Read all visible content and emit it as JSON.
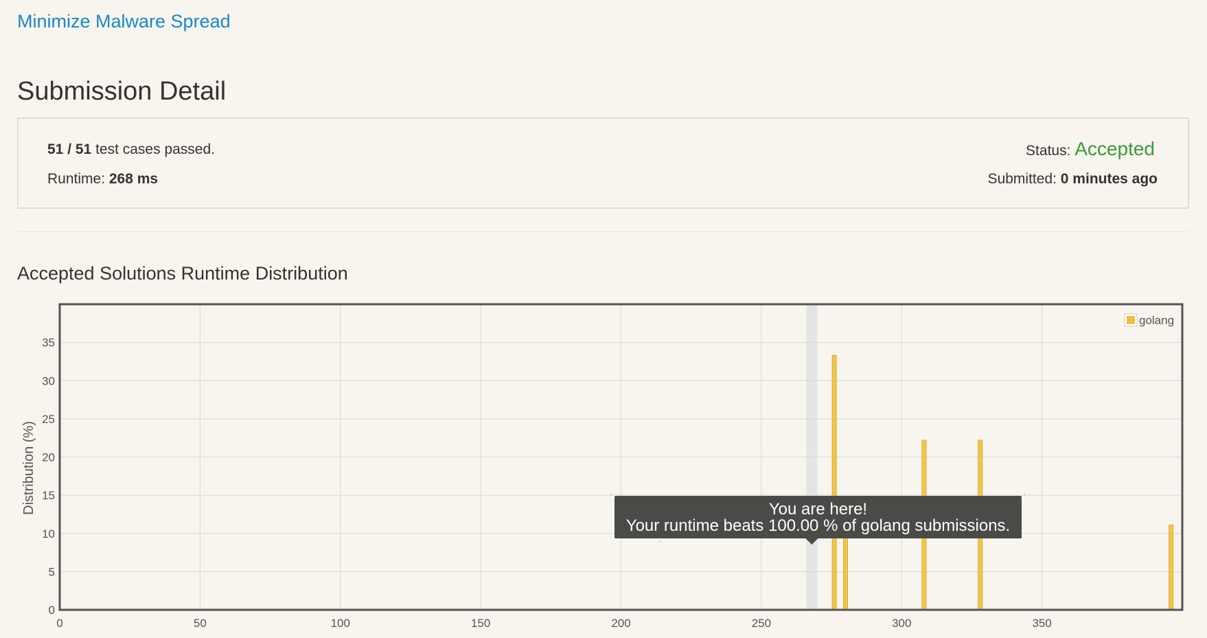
{
  "problem": {
    "title": "Minimize Malware Spread"
  },
  "page": {
    "heading": "Submission Detail"
  },
  "detail": {
    "passed_count": "51 / 51",
    "passed_suffix": " test cases passed.",
    "runtime_label": "Runtime: ",
    "runtime_value": "268 ms",
    "status_label": "Status: ",
    "status_value": "Accepted",
    "submitted_label": "Submitted: ",
    "submitted_value": "0 minutes ago"
  },
  "section": {
    "title": "Accepted Solutions Runtime Distribution"
  },
  "colors": {
    "bar": "#f0c13e",
    "bar_stroke": "#e0a923",
    "highlight": "#e4e4e4",
    "link": "#1a88c9",
    "accepted": "#3d9a3d"
  },
  "tooltip": {
    "line1": "You are here!",
    "line2": "Your runtime beats 100.00 % of golang submissions."
  },
  "chart_data": {
    "type": "bar",
    "title": "",
    "xlabel": "",
    "ylabel": "Distribution (%)",
    "xlim": [
      0,
      400
    ],
    "ylim": [
      0,
      40
    ],
    "x_ticks": [
      0,
      50,
      100,
      150,
      200,
      250,
      300,
      350
    ],
    "y_ticks": [
      0,
      5,
      10,
      15,
      20,
      25,
      30,
      35
    ],
    "grid": true,
    "legend_position": "top-right",
    "highlight_x": 268,
    "series": [
      {
        "name": "golang",
        "points": [
          {
            "x": 276,
            "y": 33.3
          },
          {
            "x": 280,
            "y": 11.1
          },
          {
            "x": 308,
            "y": 22.2
          },
          {
            "x": 328,
            "y": 22.2
          },
          {
            "x": 396,
            "y": 11.1
          }
        ]
      }
    ]
  }
}
